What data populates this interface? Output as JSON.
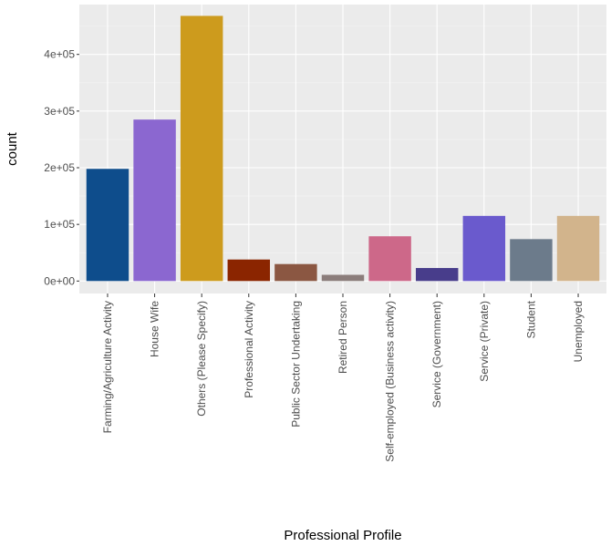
{
  "chart_data": {
    "type": "bar",
    "title": "",
    "xlabel": "Professional Profile",
    "ylabel": "count",
    "ylim": [
      -22000,
      488000
    ],
    "y_ticks": [
      0,
      100000,
      200000,
      300000,
      400000
    ],
    "y_tick_labels": [
      "0e+00",
      "1e+05",
      "2e+05",
      "3e+05",
      "4e+05"
    ],
    "grid": true,
    "panel_background": "#ebebeb",
    "categories": [
      "Farming/Agriculture Activity",
      "House Wife",
      "Others (Please Specify)",
      "Professional Activity",
      "Public Sector Undertaking",
      "Retired Person",
      "Self-employed (Business activity)",
      "Service (Government)",
      "Service (Private)",
      "Student",
      "Unemployed"
    ],
    "values": [
      198000,
      285000,
      468000,
      38000,
      30000,
      11000,
      79000,
      23000,
      115000,
      74000,
      115000
    ],
    "colors": [
      "#0e4d8c",
      "#8b67d0",
      "#cd9b1d",
      "#8b2500",
      "#8b5742",
      "#8b7d7b",
      "#cd6889",
      "#483d8b",
      "#6a5acd",
      "#6c7b8b",
      "#d2b48c"
    ]
  }
}
